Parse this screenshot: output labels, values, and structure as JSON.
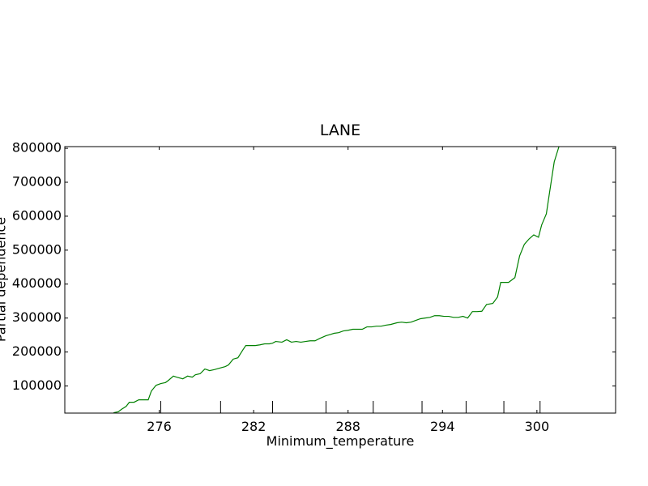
{
  "chart_data": {
    "type": "line",
    "title": "LANE",
    "x_label": "Minimum_temperature",
    "y_label": "Partial dependence",
    "color": "#008000",
    "xlim": [
      270,
      305
    ],
    "ylim": [
      20000,
      805000
    ],
    "xticks": [
      276,
      282,
      288,
      294,
      300
    ],
    "yticks": [
      100000,
      200000,
      300000,
      400000,
      500000,
      600000,
      700000,
      800000
    ],
    "deciles": [
      276.1,
      279.9,
      283.2,
      286.6,
      289.6,
      292.7,
      295.5,
      297.9,
      300.2
    ],
    "x": [
      273.1,
      273.4,
      273.6,
      273.9,
      274.1,
      274.4,
      274.7,
      274.9,
      275.3,
      275.5,
      275.8,
      276.1,
      276.4,
      276.6,
      276.9,
      277.1,
      277.5,
      277.8,
      278.1,
      278.3,
      278.6,
      278.9,
      279.2,
      279.5,
      279.8,
      280.2,
      280.4,
      280.7,
      281.0,
      281.3,
      281.5,
      281.8,
      282.1,
      282.4,
      282.7,
      283.0,
      283.2,
      283.4,
      283.8,
      284.1,
      284.4,
      284.7,
      285.0,
      285.3,
      285.6,
      285.9,
      286.2,
      286.6,
      286.9,
      287.1,
      287.4,
      287.7,
      288.0,
      288.3,
      288.6,
      288.9,
      289.2,
      289.5,
      289.8,
      290.1,
      290.4,
      290.7,
      291.1,
      291.4,
      291.7,
      292.0,
      292.3,
      292.6,
      292.9,
      293.2,
      293.5,
      293.8,
      294.1,
      294.4,
      294.7,
      295.0,
      295.3,
      295.6,
      295.9,
      296.2,
      296.5,
      296.8,
      297.2,
      297.5,
      297.7,
      298.2,
      298.6,
      298.9,
      299.2,
      299.5,
      299.8,
      300.1,
      300.3,
      300.6,
      300.8,
      301.1,
      301.4
    ],
    "values": [
      21000,
      24000,
      31000,
      40000,
      52000,
      52000,
      59000,
      59000,
      59000,
      85000,
      102000,
      107000,
      110000,
      117000,
      129000,
      126000,
      121000,
      129000,
      126000,
      133000,
      136000,
      150000,
      145000,
      148000,
      152000,
      157000,
      162000,
      179000,
      183000,
      205000,
      219000,
      219000,
      219000,
      221000,
      224000,
      224000,
      226000,
      231000,
      229000,
      236000,
      229000,
      231000,
      229000,
      231000,
      233000,
      233000,
      240000,
      248000,
      252000,
      255000,
      257000,
      262000,
      264000,
      267000,
      267000,
      267000,
      274000,
      274000,
      276000,
      276000,
      279000,
      281000,
      286000,
      288000,
      286000,
      288000,
      293000,
      298000,
      300000,
      302000,
      307000,
      307000,
      305000,
      305000,
      302000,
      302000,
      305000,
      300000,
      319000,
      319000,
      320000,
      340000,
      343000,
      362000,
      405000,
      405000,
      419000,
      483000,
      517000,
      533000,
      545000,
      538000,
      574000,
      607000,
      669000,
      760000,
      805000
    ]
  }
}
